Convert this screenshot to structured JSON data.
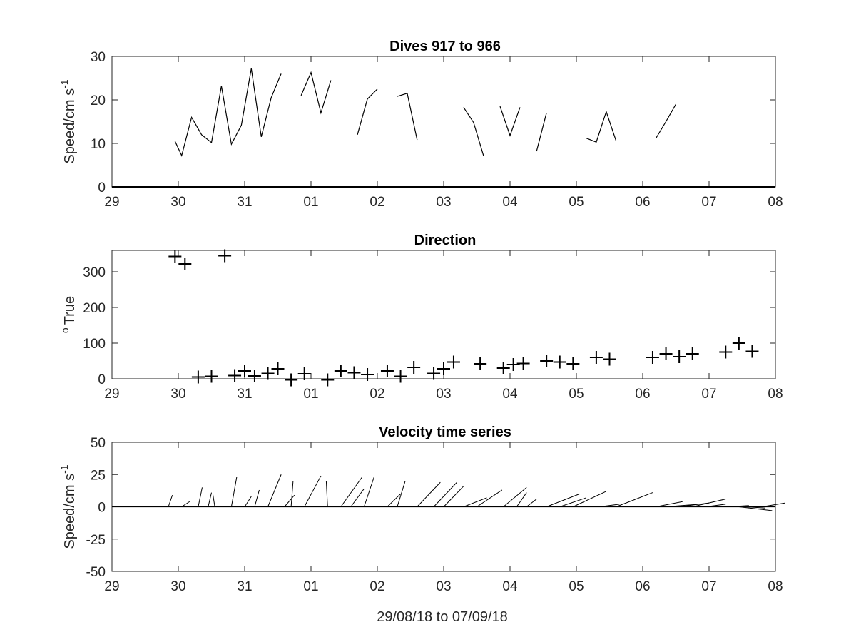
{
  "figure": {
    "xlabel": "29/08/18 to 07/09/18",
    "xtick_labels": [
      "29",
      "30",
      "31",
      "01",
      "02",
      "03",
      "04",
      "05",
      "06",
      "07",
      "08"
    ]
  },
  "chart_data": [
    {
      "type": "line",
      "title": "Dives 917 to 966",
      "ylabel": "Speed/cm s",
      "ylabel_sup": "-1",
      "xlim": [
        0,
        10
      ],
      "ylim": [
        0,
        30
      ],
      "yticks": [
        0,
        10,
        20,
        30
      ],
      "x_unit": "days since 29/08/18",
      "segments": [
        [
          [
            0.95,
            10.5
          ],
          [
            1.05,
            7.2
          ],
          [
            1.2,
            16
          ],
          [
            1.35,
            12
          ],
          [
            1.5,
            10.2
          ],
          [
            1.65,
            23.2
          ],
          [
            1.8,
            9.8
          ],
          [
            1.95,
            14.2
          ],
          [
            2.1,
            27.2
          ],
          [
            2.25,
            11.5
          ],
          [
            2.4,
            20.5
          ],
          [
            2.55,
            26
          ]
        ],
        [
          [
            2.85,
            21
          ],
          [
            3.0,
            26.3
          ],
          [
            3.15,
            17
          ],
          [
            3.3,
            24.5
          ]
        ],
        [
          [
            3.7,
            12
          ],
          [
            3.85,
            20.2
          ],
          [
            4.0,
            22.5
          ]
        ],
        [
          [
            4.3,
            20.8
          ],
          [
            4.45,
            21.5
          ],
          [
            4.6,
            10.8
          ]
        ],
        [
          [
            5.3,
            18.3
          ],
          [
            5.45,
            14.8
          ],
          [
            5.6,
            7.2
          ]
        ],
        [
          [
            5.85,
            18.5
          ],
          [
            6.0,
            11.8
          ],
          [
            6.15,
            18.3
          ]
        ],
        [
          [
            6.4,
            8.2
          ],
          [
            6.55,
            17
          ]
        ],
        [
          [
            7.15,
            11.2
          ],
          [
            7.3,
            10.3
          ],
          [
            7.45,
            17.3
          ],
          [
            7.6,
            10.5
          ]
        ],
        [
          [
            8.2,
            11.2
          ],
          [
            8.35,
            15
          ],
          [
            8.5,
            19
          ]
        ]
      ]
    },
    {
      "type": "scatter",
      "title": "Direction",
      "ylabel": "True",
      "ylabel_prefix": "o",
      "xlim": [
        0,
        10
      ],
      "ylim": [
        0,
        360
      ],
      "yticks": [
        0,
        100,
        200,
        300
      ],
      "points": [
        [
          0.95,
          343
        ],
        [
          1.1,
          322
        ],
        [
          1.3,
          5
        ],
        [
          1.5,
          7
        ],
        [
          1.7,
          345
        ],
        [
          1.85,
          9
        ],
        [
          2.0,
          22
        ],
        [
          2.15,
          8
        ],
        [
          2.35,
          15
        ],
        [
          2.5,
          28
        ],
        [
          2.7,
          -3
        ],
        [
          2.9,
          14
        ],
        [
          3.25,
          -3
        ],
        [
          3.45,
          22
        ],
        [
          3.65,
          17
        ],
        [
          3.85,
          12
        ],
        [
          4.15,
          22
        ],
        [
          4.35,
          7
        ],
        [
          4.55,
          32
        ],
        [
          4.85,
          15
        ],
        [
          5.0,
          28
        ],
        [
          5.15,
          47
        ],
        [
          5.55,
          42
        ],
        [
          5.9,
          30
        ],
        [
          6.05,
          40
        ],
        [
          6.2,
          43
        ],
        [
          6.55,
          50
        ],
        [
          6.75,
          47
        ],
        [
          6.95,
          42
        ],
        [
          7.3,
          60
        ],
        [
          7.5,
          55
        ],
        [
          8.15,
          60
        ],
        [
          8.35,
          70
        ],
        [
          8.55,
          62
        ],
        [
          8.75,
          70
        ],
        [
          9.25,
          75
        ],
        [
          9.45,
          100
        ],
        [
          9.65,
          77
        ]
      ]
    },
    {
      "type": "stick",
      "title": "Velocity time series",
      "ylabel": "Speed/cm s",
      "ylabel_sup": "-1",
      "xlim": [
        0,
        10
      ],
      "ylim": [
        -50,
        50
      ],
      "yticks": [
        -50,
        -25,
        0,
        25,
        50
      ],
      "sticks": [
        [
          0.85,
          0.06,
          9
        ],
        [
          1.05,
          0.12,
          4
        ],
        [
          1.3,
          0.06,
          15
        ],
        [
          1.45,
          0.05,
          11
        ],
        [
          1.55,
          -0.03,
          10
        ],
        [
          1.8,
          0.08,
          23
        ],
        [
          2.0,
          0.1,
          8
        ],
        [
          2.15,
          0.07,
          13
        ],
        [
          2.35,
          0.2,
          25
        ],
        [
          2.6,
          0.15,
          9
        ],
        [
          2.7,
          0.03,
          20
        ],
        [
          2.9,
          0.25,
          24
        ],
        [
          3.25,
          -0.02,
          20
        ],
        [
          3.45,
          0.32,
          23
        ],
        [
          3.6,
          0.2,
          14
        ],
        [
          3.8,
          0.15,
          23
        ],
        [
          4.15,
          0.2,
          10
        ],
        [
          4.3,
          0.12,
          20
        ],
        [
          4.6,
          0.35,
          19
        ],
        [
          4.85,
          0.35,
          19
        ],
        [
          5.0,
          0.3,
          16
        ],
        [
          5.3,
          0.35,
          7
        ],
        [
          5.5,
          0.38,
          13
        ],
        [
          5.9,
          0.35,
          15
        ],
        [
          6.1,
          0.15,
          11
        ],
        [
          6.25,
          0.15,
          6
        ],
        [
          6.55,
          0.5,
          10
        ],
        [
          6.75,
          0.4,
          7
        ],
        [
          6.95,
          0.5,
          12
        ],
        [
          7.35,
          0.3,
          2
        ],
        [
          7.6,
          0.55,
          11
        ],
        [
          8.2,
          0.4,
          4
        ],
        [
          8.35,
          0.5,
          2
        ],
        [
          8.55,
          0.45,
          3
        ],
        [
          8.75,
          0.5,
          6
        ],
        [
          8.95,
          0.3,
          2
        ],
        [
          9.3,
          0.3,
          1
        ],
        [
          9.45,
          0.5,
          -3
        ],
        [
          9.55,
          0.3,
          -1
        ],
        [
          9.8,
          0.35,
          3
        ]
      ]
    }
  ]
}
